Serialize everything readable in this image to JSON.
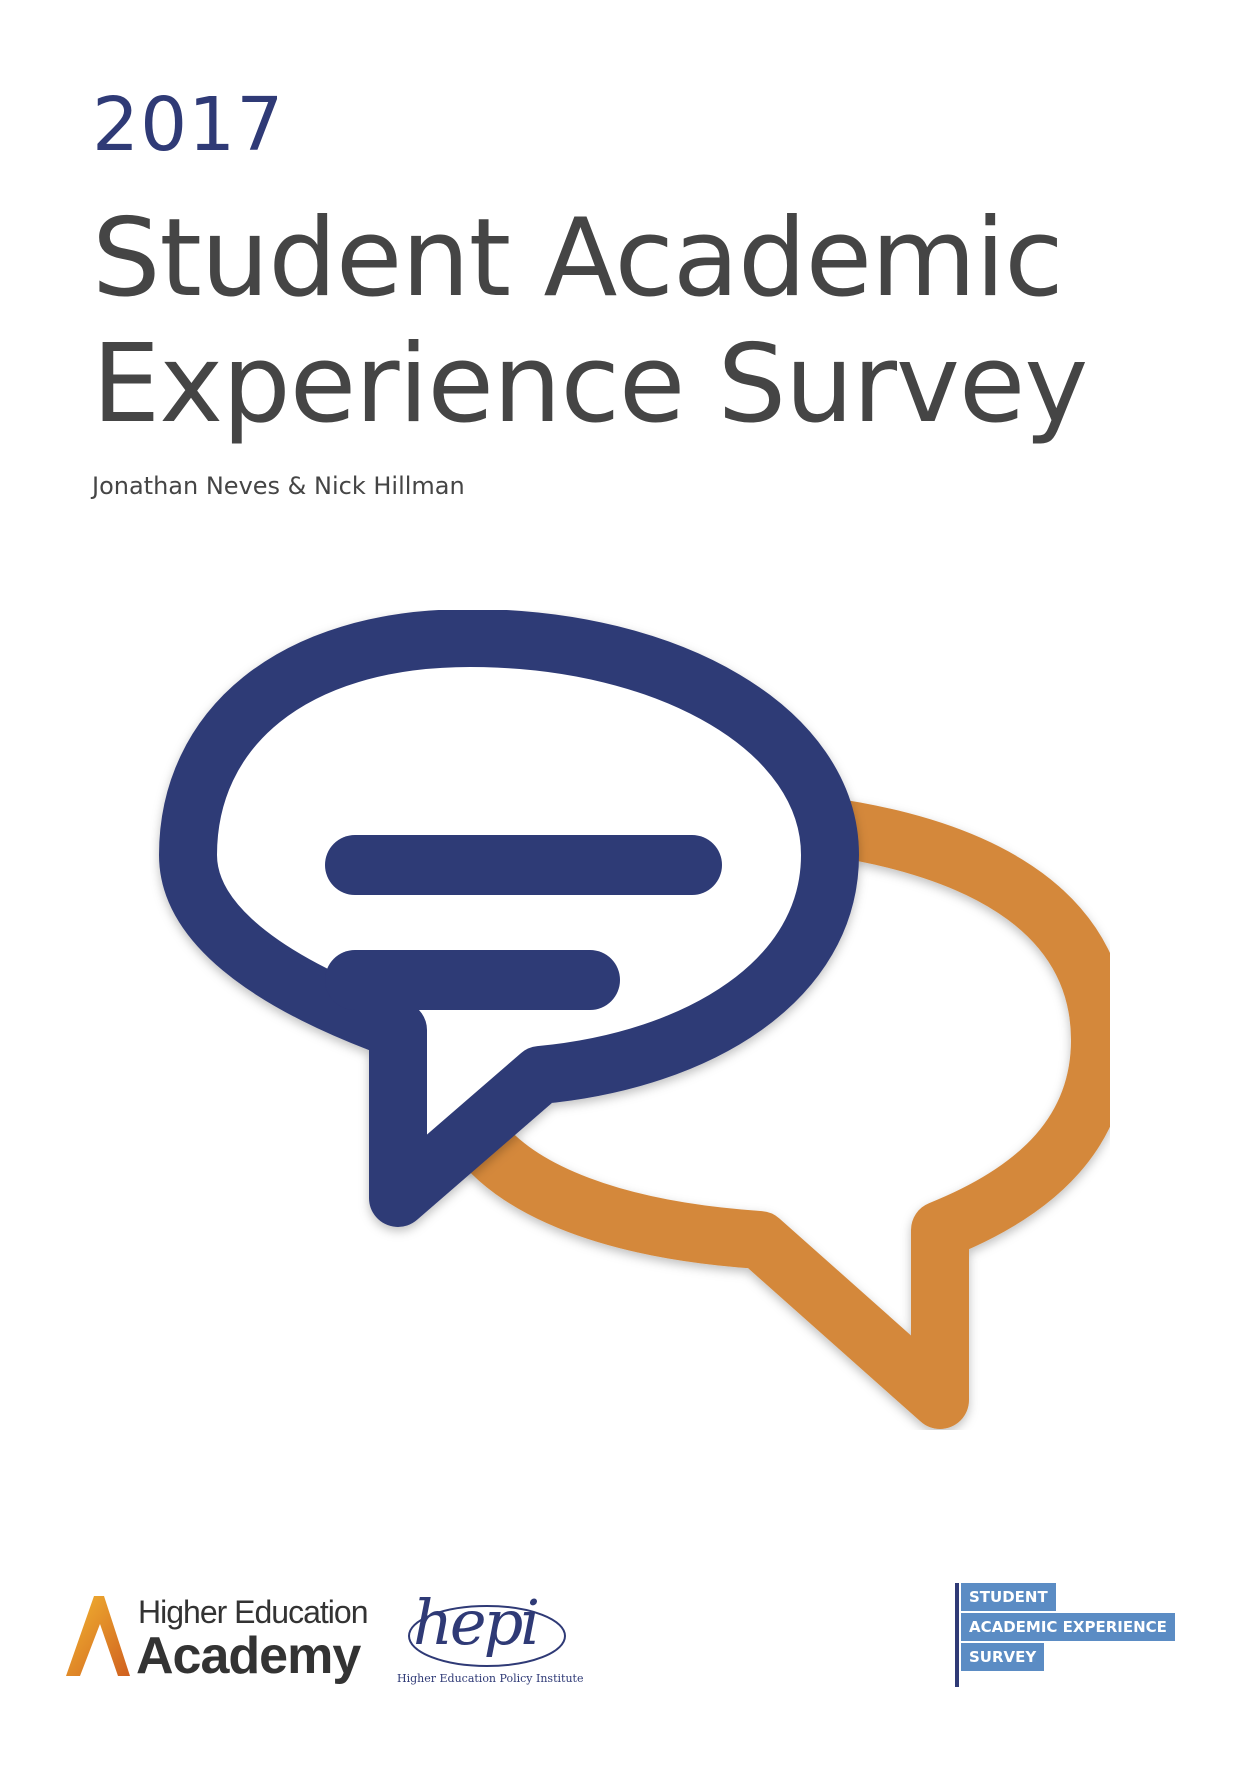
{
  "cover": {
    "year": "2017",
    "title_line1": "Student Academic",
    "title_line2": "Experience Survey",
    "authors": "Jonathan Neves & Nick Hillman"
  },
  "hero_graphic": {
    "icon": "speech-bubbles-icon",
    "colors": {
      "front_bubble": "#2f3a76",
      "back_bubble": "#d4883b",
      "background": "#ffffff"
    }
  },
  "logos": {
    "hea": {
      "line1": "Higher Education",
      "line2": "Academy",
      "icon": "hea-a-mark-icon"
    },
    "hepi": {
      "word": "hepi",
      "subtitle": "Higher Education Policy Institute"
    },
    "saes": {
      "line1": "STUDENT",
      "line2": "ACADEMIC EXPERIENCE",
      "line3": "SURVEY",
      "color": "#5b8cc4"
    }
  }
}
